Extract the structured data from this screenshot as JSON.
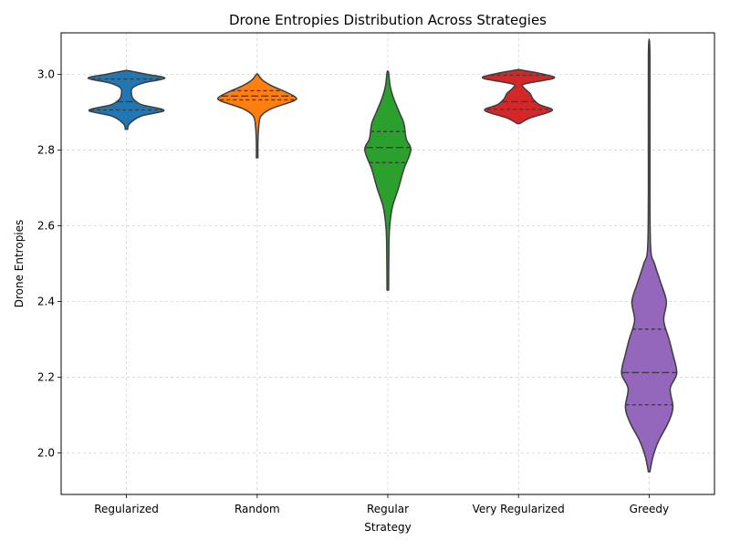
{
  "chart_data": {
    "type": "violin",
    "title": "Drone Entropies Distribution Across Strategies",
    "xlabel": "Strategy",
    "ylabel": "Drone Entropies",
    "ylim": [
      1.89,
      3.11
    ],
    "yticks": [
      2.0,
      2.2,
      2.4,
      2.6,
      2.8,
      3.0
    ],
    "ytick_labels": [
      "2.0",
      "2.2",
      "2.4",
      "2.6",
      "2.8",
      "3.0"
    ],
    "grid": true,
    "inner": "quartile",
    "categories": [
      "Regularized",
      "Random",
      "Regular",
      "Very Regularized",
      "Greedy"
    ],
    "series": [
      {
        "category": "Regularized",
        "color": "#1f77b4",
        "min": 2.855,
        "q1": 2.906,
        "median": 2.928,
        "q3": 2.988,
        "max": 3.01,
        "density": [
          [
            2.855,
            0.03
          ],
          [
            2.87,
            0.08
          ],
          [
            2.89,
            0.38
          ],
          [
            2.905,
            0.98
          ],
          [
            2.92,
            0.4
          ],
          [
            2.935,
            0.18
          ],
          [
            2.95,
            0.13
          ],
          [
            2.965,
            0.16
          ],
          [
            2.978,
            0.45
          ],
          [
            2.99,
            1.0
          ],
          [
            3.0,
            0.55
          ],
          [
            3.01,
            0.04
          ]
        ]
      },
      {
        "category": "Random",
        "color": "#ff7f0e",
        "min": 2.78,
        "q1": 2.933,
        "median": 2.943,
        "q3": 2.957,
        "max": 3.0,
        "density": [
          [
            2.78,
            0.02
          ],
          [
            2.82,
            0.02
          ],
          [
            2.86,
            0.04
          ],
          [
            2.89,
            0.1
          ],
          [
            2.91,
            0.38
          ],
          [
            2.93,
            0.95
          ],
          [
            2.94,
            1.0
          ],
          [
            2.955,
            0.72
          ],
          [
            2.97,
            0.38
          ],
          [
            2.985,
            0.14
          ],
          [
            3.0,
            0.02
          ]
        ]
      },
      {
        "category": "Regular",
        "color": "#2ca02c",
        "min": 2.43,
        "q1": 2.767,
        "median": 2.807,
        "q3": 2.849,
        "max": 3.005,
        "density": [
          [
            2.43,
            0.02
          ],
          [
            2.55,
            0.03
          ],
          [
            2.6,
            0.05
          ],
          [
            2.65,
            0.12
          ],
          [
            2.7,
            0.28
          ],
          [
            2.75,
            0.42
          ],
          [
            2.8,
            0.6
          ],
          [
            2.83,
            0.48
          ],
          [
            2.87,
            0.42
          ],
          [
            2.9,
            0.3
          ],
          [
            2.94,
            0.14
          ],
          [
            2.97,
            0.06
          ],
          [
            3.005,
            0.02
          ]
        ]
      },
      {
        "category": "Very Regularized",
        "color": "#d62728",
        "min": 2.87,
        "q1": 2.908,
        "median": 2.928,
        "q3": 2.998,
        "max": 3.01,
        "density": [
          [
            2.87,
            0.03
          ],
          [
            2.885,
            0.3
          ],
          [
            2.905,
            0.88
          ],
          [
            2.92,
            0.55
          ],
          [
            2.935,
            0.38
          ],
          [
            2.95,
            0.3
          ],
          [
            2.965,
            0.14
          ],
          [
            2.975,
            0.16
          ],
          [
            2.99,
            0.92
          ],
          [
            3.0,
            0.68
          ],
          [
            3.012,
            0.05
          ]
        ]
      },
      {
        "category": "Greedy",
        "color": "#9467bd",
        "min": 1.95,
        "q1": 2.127,
        "median": 2.212,
        "q3": 2.327,
        "max": 3.05,
        "density": [
          [
            1.95,
            0.02
          ],
          [
            1.99,
            0.1
          ],
          [
            2.03,
            0.24
          ],
          [
            2.08,
            0.5
          ],
          [
            2.12,
            0.62
          ],
          [
            2.17,
            0.55
          ],
          [
            2.21,
            0.72
          ],
          [
            2.26,
            0.62
          ],
          [
            2.3,
            0.52
          ],
          [
            2.35,
            0.38
          ],
          [
            2.4,
            0.45
          ],
          [
            2.45,
            0.3
          ],
          [
            2.5,
            0.14
          ],
          [
            2.54,
            0.04
          ],
          [
            2.7,
            0.02
          ],
          [
            3.05,
            0.02
          ]
        ]
      }
    ]
  }
}
